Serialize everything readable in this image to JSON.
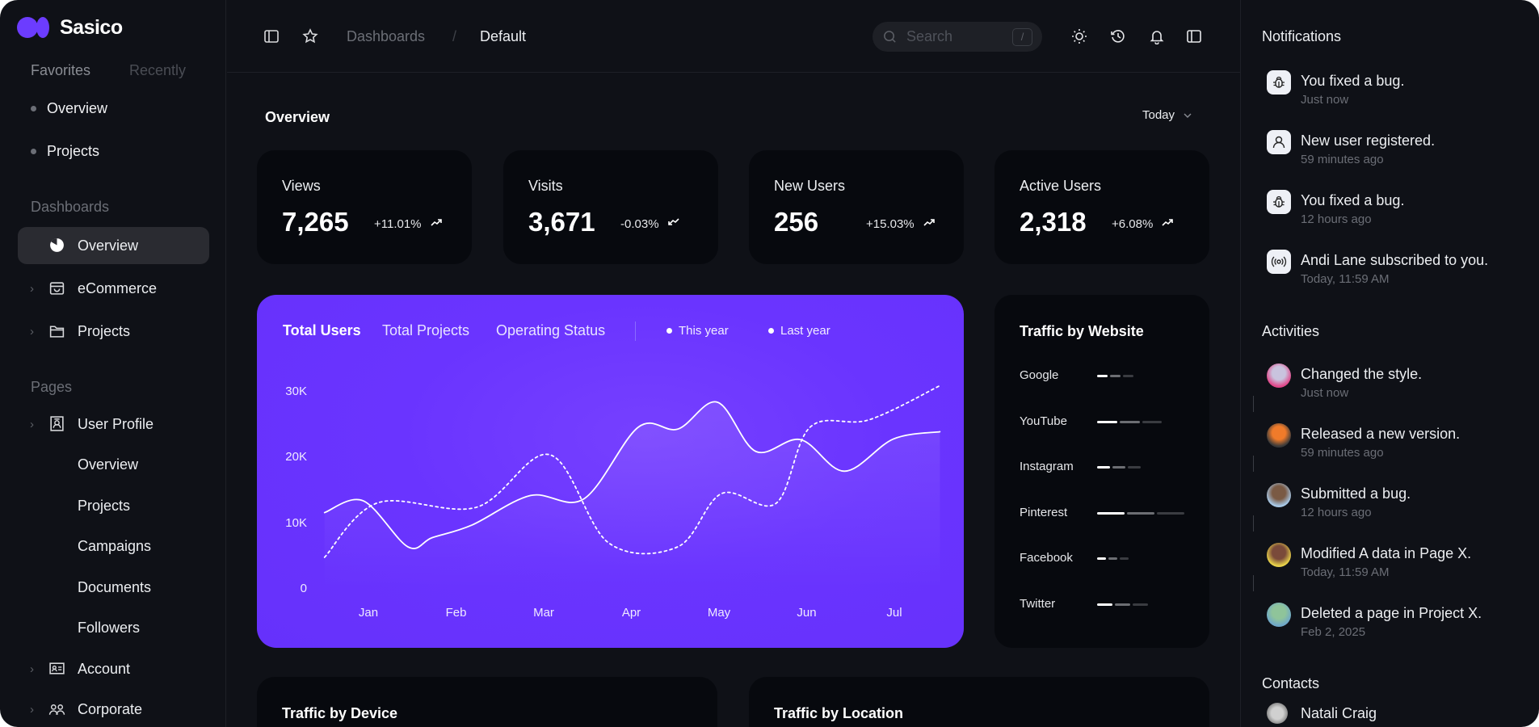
{
  "app": {
    "name": "Sasico",
    "brand_color": "#6c3cff"
  },
  "sidebar": {
    "tabs": [
      "Favorites",
      "Recently"
    ],
    "favorites": [
      "Overview",
      "Projects"
    ],
    "dashboards_label": "Dashboards",
    "dashboards": [
      {
        "label": "Overview",
        "icon": "pie-chart-icon",
        "active": true,
        "chevron": false
      },
      {
        "label": "eCommerce",
        "icon": "shopping-bag-icon",
        "active": false,
        "chevron": true
      },
      {
        "label": "Projects",
        "icon": "folder-icon",
        "active": false,
        "chevron": true
      }
    ],
    "pages_label": "Pages",
    "pages": [
      {
        "label": "User Profile",
        "icon": "user-profile-icon",
        "chevron": true
      },
      {
        "label": "Overview",
        "sub": true
      },
      {
        "label": "Projects",
        "sub": true
      },
      {
        "label": "Campaigns",
        "sub": true
      },
      {
        "label": "Documents",
        "sub": true
      },
      {
        "label": "Followers",
        "sub": true
      },
      {
        "label": "Account",
        "icon": "id-card-icon",
        "chevron": true
      },
      {
        "label": "Corporate",
        "icon": "users-icon",
        "chevron": true
      }
    ]
  },
  "header": {
    "breadcrumb": [
      "Dashboards",
      "Default"
    ],
    "separator": "/",
    "search": {
      "placeholder": "Search",
      "shortcut": "/"
    }
  },
  "overview": {
    "title": "Overview",
    "range": "Today"
  },
  "stats": [
    {
      "label": "Views",
      "value": "7,265",
      "change": "+11.01%",
      "trend": "up"
    },
    {
      "label": "Visits",
      "value": "3,671",
      "change": "-0.03%",
      "trend": "down"
    },
    {
      "label": "New Users",
      "value": "256",
      "change": "+15.03%",
      "trend": "up"
    },
    {
      "label": "Active Users",
      "value": "2,318",
      "change": "+6.08%",
      "trend": "up"
    }
  ],
  "users_chart": {
    "tabs": [
      "Total Users",
      "Total Projects",
      "Operating Status"
    ],
    "active_tab": 0,
    "legend": [
      "This year",
      "Last year"
    ]
  },
  "chart_data": {
    "type": "line",
    "background": "#6a34ff",
    "categories": [
      "Jan",
      "Feb",
      "Mar",
      "Apr",
      "May",
      "Jun",
      "Jul"
    ],
    "yticks": [
      "0",
      "10K",
      "20K",
      "30K"
    ],
    "ylim": [
      0,
      30000
    ],
    "grid": false,
    "legend_placement": "top",
    "x_unit": "month (1 = Jan)",
    "series": [
      {
        "name": "This year",
        "style": "solid",
        "x": [
          0.5,
          0.94,
          1.45,
          1.73,
          2.18,
          2.85,
          3.46,
          4.08,
          4.53,
          4.98,
          5.42,
          5.93,
          6.43,
          6.99,
          7.52
        ],
        "values": [
          11600,
          13400,
          6400,
          7800,
          9700,
          14200,
          13700,
          24600,
          24300,
          28400,
          20900,
          22700,
          17900,
          22800,
          23900
        ]
      },
      {
        "name": "Last year",
        "style": "dashed",
        "x": [
          0.5,
          1.11,
          2.23,
          3.07,
          3.74,
          4.53,
          5.03,
          5.65,
          6.04,
          6.71,
          7.52
        ],
        "values": [
          4800,
          13100,
          12400,
          20400,
          7000,
          6400,
          14500,
          13000,
          24600,
          25700,
          30900
        ]
      }
    ]
  },
  "traffic_website": {
    "title": "Traffic by Website",
    "sites": [
      {
        "name": "Google",
        "level": 0.38
      },
      {
        "name": "YouTube",
        "level": 0.73
      },
      {
        "name": "Instagram",
        "level": 0.47
      },
      {
        "name": "Pinterest",
        "level": 1.0
      },
      {
        "name": "Facebook",
        "level": 0.32
      },
      {
        "name": "Twitter",
        "level": 0.56
      }
    ]
  },
  "bottom_cards": [
    "Traffic by Device",
    "Traffic by Location"
  ],
  "notifications": {
    "title": "Notifications",
    "items": [
      {
        "text": "You fixed a bug.",
        "time": "Just now",
        "icon": "bug-icon"
      },
      {
        "text": "New user registered.",
        "time": "59 minutes ago",
        "icon": "user-icon"
      },
      {
        "text": "You fixed a bug.",
        "time": "12 hours ago",
        "icon": "bug-icon"
      },
      {
        "text": "Andi Lane subscribed to you.",
        "time": "Today, 11:59 AM",
        "icon": "broadcast-icon"
      }
    ]
  },
  "activities": {
    "title": "Activities",
    "items": [
      {
        "text": "Changed the style.",
        "time": "Just now",
        "avatar_colors": [
          "#e0488a",
          "#c9c3de"
        ]
      },
      {
        "text": "Released a new version.",
        "time": "59 minutes ago",
        "avatar_colors": [
          "#3a3a3a",
          "#f07b2a"
        ]
      },
      {
        "text": "Submitted a bug.",
        "time": "12 hours ago",
        "avatar_colors": [
          "#a8c9e8",
          "#7a5a44"
        ]
      },
      {
        "text": "Modified A data in Page X.",
        "time": "Today, 11:59 AM",
        "avatar_colors": [
          "#e8d24a",
          "#7a4a3a"
        ]
      },
      {
        "text": "Deleted a page in Project X.",
        "time": "Feb 2, 2025",
        "avatar_colors": [
          "#6fa8c9",
          "#8fc49a"
        ]
      }
    ]
  },
  "contacts": {
    "title": "Contacts",
    "items": [
      {
        "name": "Natali Craig"
      }
    ]
  }
}
